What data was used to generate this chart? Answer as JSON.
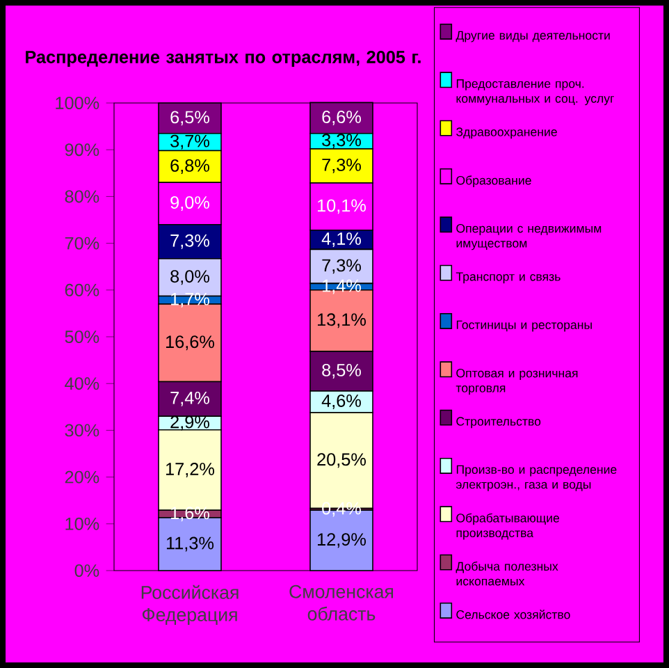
{
  "chart_data": {
    "type": "bar",
    "stacked": true,
    "title": "Распределение занятых по отраслям, 2005 г.",
    "categories": [
      "Российская Федерация",
      "Смоленская область"
    ],
    "ylim": [
      0,
      100
    ],
    "yticks": [
      {
        "value": 0,
        "label": "0%"
      },
      {
        "value": 10,
        "label": "10%"
      },
      {
        "value": 20,
        "label": "20%"
      },
      {
        "value": 30,
        "label": "30%"
      },
      {
        "value": 40,
        "label": "40%"
      },
      {
        "value": 50,
        "label": "50%"
      },
      {
        "value": 60,
        "label": "60%"
      },
      {
        "value": 70,
        "label": "70%"
      },
      {
        "value": 80,
        "label": "80%"
      },
      {
        "value": 90,
        "label": "90%"
      },
      {
        "value": 100,
        "label": "100%"
      }
    ],
    "legend": "right",
    "series": [
      {
        "name": "Сельское хозяйство",
        "color": "#9999ff",
        "values": [
          11.3,
          12.9
        ],
        "value_labels": [
          "11,3%",
          "12,9%"
        ]
      },
      {
        "name": "Добыча полезных ископаемых",
        "color": "#993366",
        "values": [
          1.6,
          0.4
        ],
        "value_labels": [
          "1,6%",
          "0,4%"
        ]
      },
      {
        "name": "Обрабатывающие производства",
        "color": "#ffffcc",
        "values": [
          17.2,
          20.5
        ],
        "value_labels": [
          "17,2%",
          "20,5%"
        ]
      },
      {
        "name": "Произв-во и распределение электроэн., газа и воды",
        "color": "#ccffff",
        "values": [
          2.9,
          4.6
        ],
        "value_labels": [
          "2,9%",
          "4,6%"
        ]
      },
      {
        "name": "Строительство",
        "color": "#660066",
        "values": [
          7.4,
          8.5
        ],
        "value_labels": [
          "7,4%",
          "8,5%"
        ]
      },
      {
        "name": "Оптовая и розничная торговля",
        "color": "#ff8080",
        "values": [
          16.6,
          13.1
        ],
        "value_labels": [
          "16,6%",
          "13,1%"
        ]
      },
      {
        "name": "Гостиницы и рестораны",
        "color": "#0066cc",
        "values": [
          1.7,
          1.4
        ],
        "value_labels": [
          "1,7%",
          "1,4%"
        ]
      },
      {
        "name": "Транспорт и связь",
        "color": "#ccccff",
        "values": [
          8.0,
          7.3
        ],
        "value_labels": [
          "8,0%",
          "7,3%"
        ]
      },
      {
        "name": "Операции с недвижимым имуществом",
        "color": "#000080",
        "values": [
          7.3,
          4.1
        ],
        "value_labels": [
          "7,3%",
          "4,1%"
        ]
      },
      {
        "name": "Образование",
        "color": "#ff00ff",
        "values": [
          9.0,
          10.1
        ],
        "value_labels": [
          "9,0%",
          "10,1%"
        ]
      },
      {
        "name": "Здравоохранение",
        "color": "#ffff00",
        "values": [
          6.8,
          7.3
        ],
        "value_labels": [
          "6,8%",
          "7,3%"
        ]
      },
      {
        "name": "Предоставление проч. коммунальных и соц. услуг",
        "color": "#00ffff",
        "values": [
          3.7,
          3.3
        ],
        "value_labels": [
          "3,7%",
          "3,3%"
        ]
      },
      {
        "name": "Другие виды деятельности",
        "color": "#800080",
        "values": [
          6.5,
          6.6
        ],
        "value_labels": [
          "6,5%",
          "6,6%"
        ]
      }
    ]
  }
}
